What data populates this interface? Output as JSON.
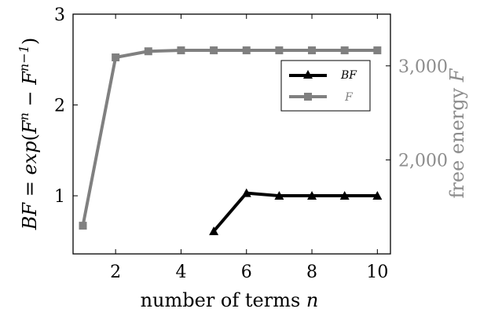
{
  "chart_data": {
    "type": "line",
    "xlabel": "number of terms n",
    "ylabel_left": "BF = exp(F^n − F^(n−1))",
    "ylabel_right": "free energy F",
    "xlim": [
      0.7,
      10.4
    ],
    "ylim_left": [
      0.36,
      3.0
    ],
    "ylim_right": [
      1000,
      3550
    ],
    "x_ticks": [
      2,
      4,
      6,
      8,
      10
    ],
    "y_left_ticks": [
      1,
      2,
      3
    ],
    "y_right_ticks": [
      2000,
      3000
    ],
    "y_right_tick_labels": [
      "2,000",
      "3,000"
    ],
    "grid": false,
    "legend_position": "top-right",
    "series": [
      {
        "name": "BF",
        "axis": "left",
        "color": "#000000",
        "marker": "triangle",
        "x": [
          5,
          6,
          7,
          8,
          9,
          10
        ],
        "y": [
          0.61,
          1.03,
          1.0,
          1.0,
          1.0,
          1.0
        ]
      },
      {
        "name": "F",
        "axis": "right",
        "color": "#808080",
        "marker": "square",
        "x": [
          1,
          2,
          3,
          4,
          5,
          6,
          7,
          8,
          9,
          10
        ],
        "y": [
          1300,
          3090,
          3155,
          3165,
          3165,
          3165,
          3165,
          3165,
          3165,
          3165
        ]
      }
    ]
  }
}
